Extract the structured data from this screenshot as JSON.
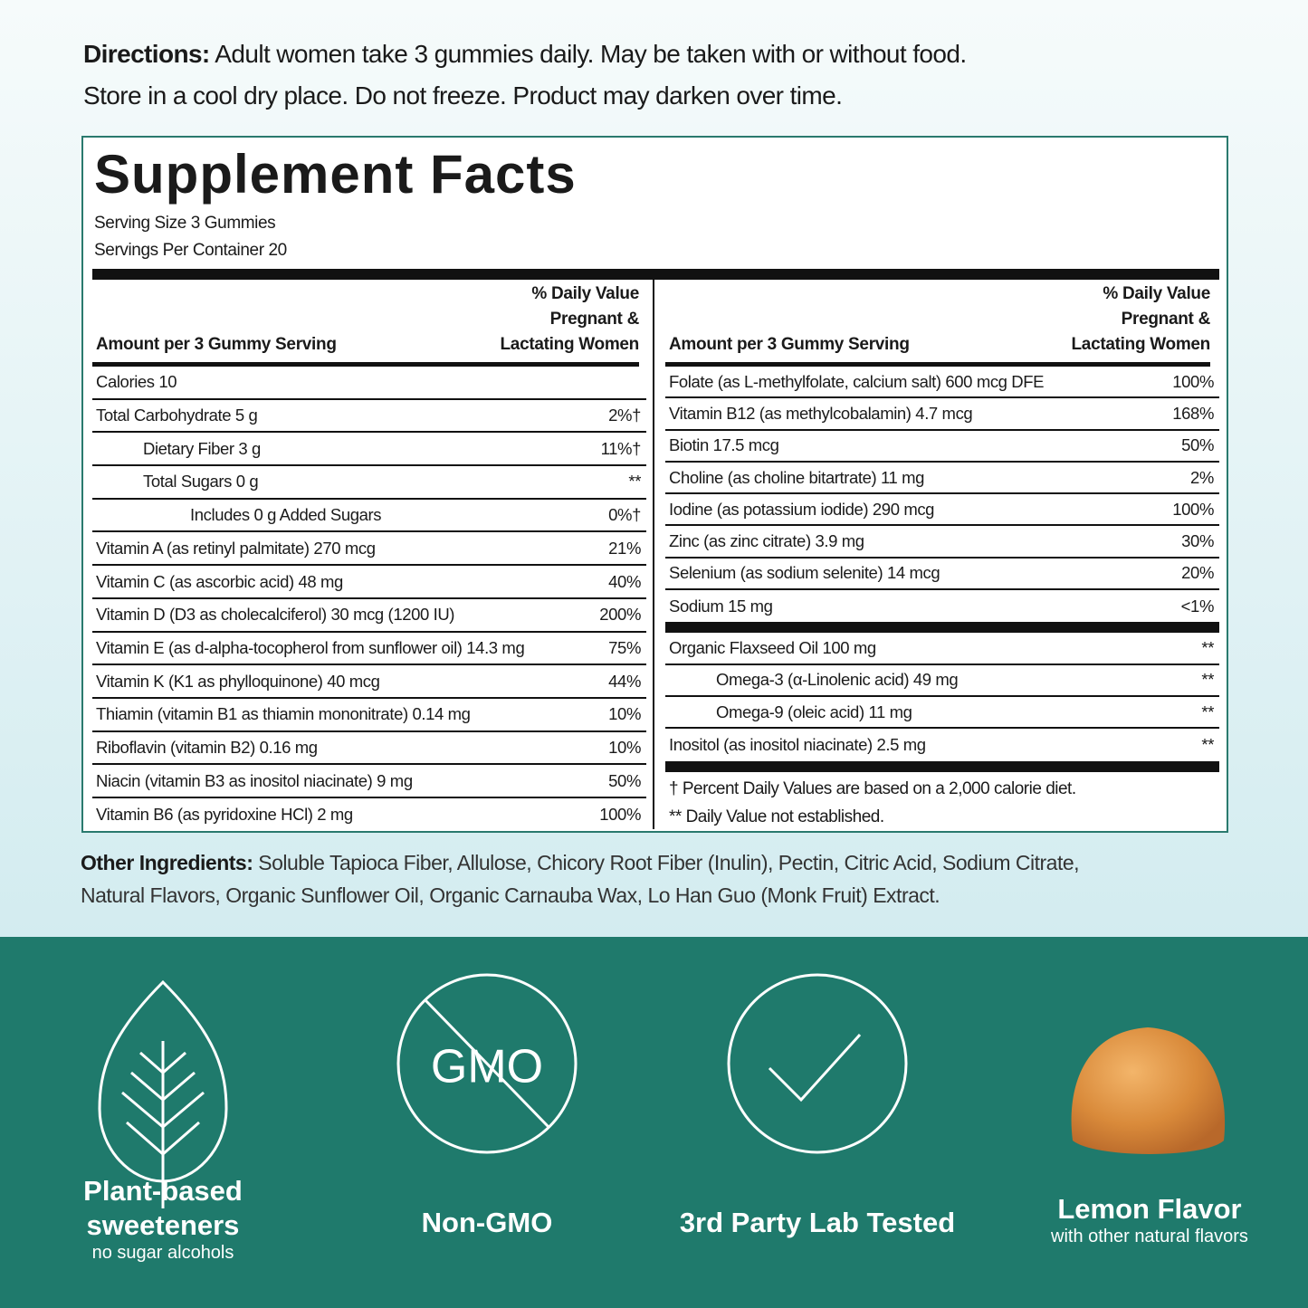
{
  "directions": {
    "label": "Directions:",
    "lines": [
      "Adult women take 3 gummies daily. May be taken with or without food.",
      "Store in a cool dry place. Do not freeze. Product may darken over time."
    ]
  },
  "facts": {
    "title": "Supplement Facts",
    "serving_size": "Serving Size 3 Gummies",
    "servings_per_container": "Servings Per Container 20",
    "amount_header": "Amount per 3 Gummy Serving",
    "dv_header": [
      "% Daily Value",
      "Pregnant &",
      "Lactating Women"
    ],
    "left_rows": [
      {
        "name": "Calories 10"
      },
      {
        "name": "Total Carbohydrate 5 g",
        "dv": "2%†"
      },
      {
        "name": "Dietary Fiber 3 g",
        "dv": "11%†",
        "level": 1
      },
      {
        "name": "Total Sugars 0 g",
        "dv": "**",
        "level": 1
      },
      {
        "name": "Includes 0 g Added Sugars",
        "dv": "0%†",
        "level": 2
      },
      {
        "name": "Vitamin A (as retinyl palmitate) 270 mcg",
        "dv": "21%"
      },
      {
        "name": "Vitamin C (as ascorbic acid) 48 mg",
        "dv": "40%"
      },
      {
        "name": "Vitamin D (D3 as cholecalciferol) 30 mcg (1200 IU)",
        "dv": "200%"
      },
      {
        "name": "Vitamin E (as d-alpha-tocopherol from sunflower oil) 14.3 mg",
        "dv": "75%"
      },
      {
        "name": "Vitamin K (K1 as phylloquinone) 40 mcg",
        "dv": "44%"
      },
      {
        "name": "Thiamin (vitamin B1 as thiamin mononitrate) 0.14 mg",
        "dv": "10%"
      },
      {
        "name": "Riboflavin (vitamin B2) 0.16 mg",
        "dv": "10%"
      },
      {
        "name": "Niacin (vitamin B3 as inositol niacinate) 9 mg",
        "dv": "50%"
      },
      {
        "name": "Vitamin B6 (as pyridoxine HCl) 2 mg",
        "dv": "100%"
      }
    ],
    "right_groups": [
      [
        {
          "name": "Folate (as L-methylfolate, calcium salt) 600 mcg DFE",
          "dv": "100%"
        },
        {
          "name": "Vitamin B12 (as methylcobalamin) 4.7 mcg",
          "dv": "168%"
        },
        {
          "name": "Biotin 17.5 mcg",
          "dv": "50%"
        },
        {
          "name": "Choline (as choline bitartrate) 11 mg",
          "dv": "2%"
        },
        {
          "name": "Iodine (as potassium iodide) 290 mcg",
          "dv": "100%"
        },
        {
          "name": "Zinc (as zinc citrate) 3.9 mg",
          "dv": "30%"
        },
        {
          "name": "Selenium (as sodium selenite) 14 mcg",
          "dv": "20%"
        },
        {
          "name": "Sodium 15 mg",
          "dv": "<1%"
        }
      ],
      [
        {
          "name": "Organic Flaxseed Oil 100 mg",
          "dv": "**"
        },
        {
          "name": "Omega-3 (α-Linolenic acid) 49 mg",
          "dv": "**",
          "level": 1
        },
        {
          "name": "Omega-9 (oleic acid) 11 mg",
          "dv": "**",
          "level": 1
        },
        {
          "name": "Inositol (as inositol niacinate) 2.5 mg",
          "dv": "**"
        }
      ]
    ],
    "footnotes": [
      "† Percent Daily Values are based on a 2,000 calorie diet.",
      "** Daily Value not established."
    ]
  },
  "other_ingredients": {
    "label": "Other Ingredients:",
    "lines": [
      "Soluble Tapioca Fiber, Allulose, Chicory Root Fiber (Inulin), Pectin, Citric Acid, Sodium Citrate,",
      "Natural Flavors, Organic Sunflower Oil, Organic Carnauba Wax, Lo Han Guo (Monk Fruit) Extract."
    ]
  },
  "badges": [
    {
      "title": [
        "Plant-based",
        "sweeteners"
      ],
      "subtitle": "no sugar alcohols"
    },
    {
      "icon_text": "GMO",
      "title": [
        "Non-GMO"
      ]
    },
    {
      "title": [
        "3rd Party Lab Tested"
      ]
    },
    {
      "title": [
        "Lemon Flavor"
      ],
      "subtitle": "with other natural flavors"
    }
  ]
}
